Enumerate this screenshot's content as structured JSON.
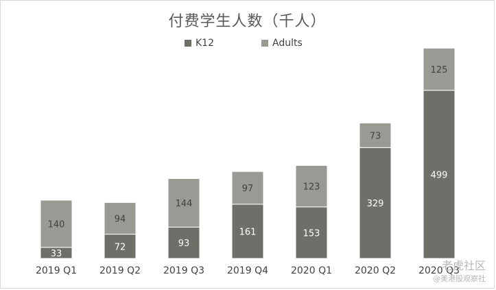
{
  "chart_data": {
    "type": "bar",
    "stacked": true,
    "title": "付费学生人数（千人）",
    "categories": [
      "2019 Q1",
      "2019 Q2",
      "2019 Q3",
      "2019 Q4",
      "2020 Q1",
      "2020 Q2",
      "2020 Q3"
    ],
    "series": [
      {
        "name": "K12",
        "values": [
          33,
          72,
          93,
          161,
          153,
          329,
          499
        ],
        "color": "#6f6f69"
      },
      {
        "name": "Adults",
        "values": [
          140,
          94,
          144,
          97,
          123,
          73,
          125
        ],
        "color": "#9a9a94"
      }
    ],
    "ylim": [
      0,
      650
    ],
    "grid": false,
    "legend_position": "top-center",
    "data_labels": true
  },
  "watermark": {
    "main": "老虎社区",
    "sub": "@美港股观察社"
  }
}
